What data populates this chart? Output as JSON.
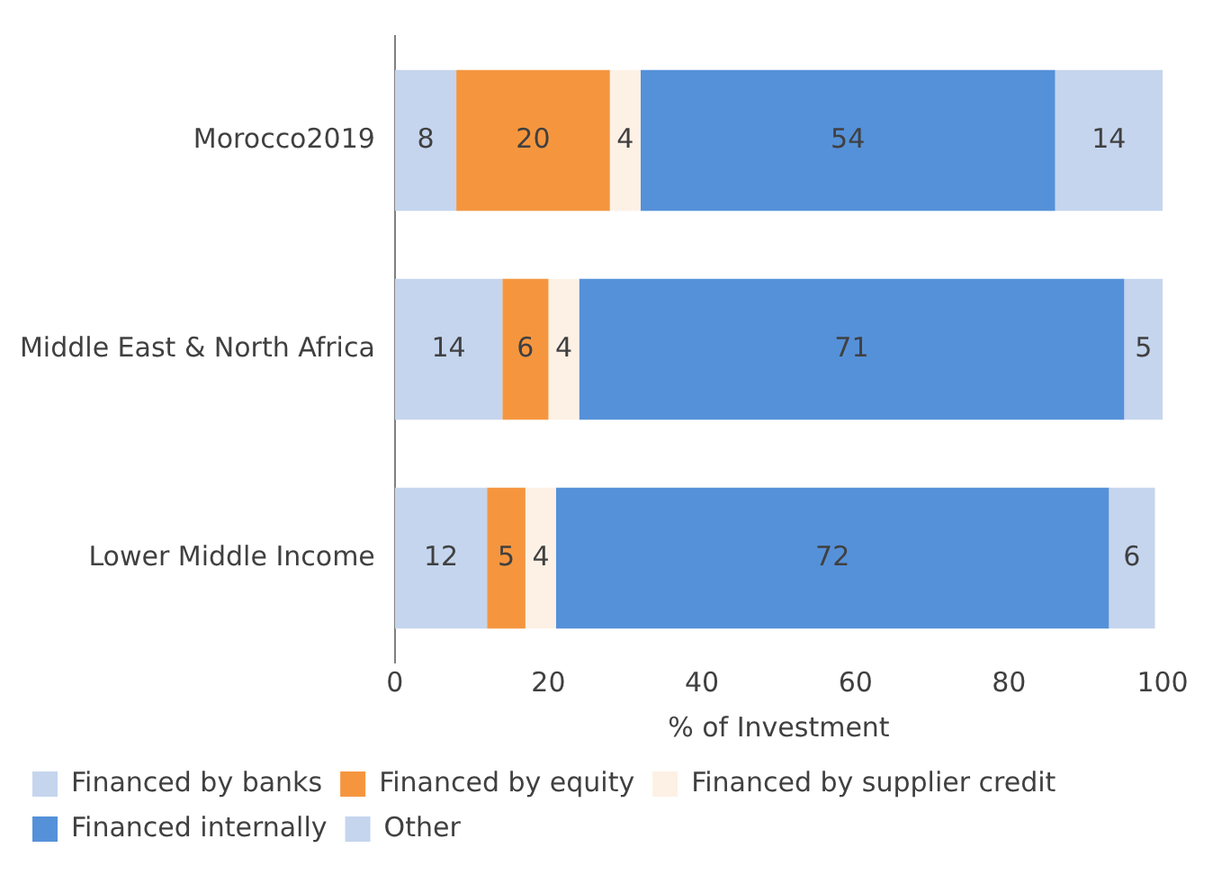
{
  "chart_data": {
    "type": "bar",
    "orientation": "horizontal",
    "stacked": true,
    "categories": [
      "Morocco2019",
      "Middle East & North Africa",
      "Lower Middle Income"
    ],
    "series": [
      {
        "name": "Financed by banks",
        "color": "#c5d5ee",
        "values": [
          8,
          14,
          12
        ]
      },
      {
        "name": "Financed by equity",
        "color": "#f5963f",
        "values": [
          20,
          6,
          5
        ]
      },
      {
        "name": "Financed by supplier credit",
        "color": "#fdf1e5",
        "values": [
          4,
          4,
          4
        ]
      },
      {
        "name": "Financed internally",
        "color": "#5591d9",
        "values": [
          54,
          71,
          72
        ]
      },
      {
        "name": "Other",
        "color": "#c5d5ee",
        "values": [
          14,
          5,
          6
        ]
      }
    ],
    "xlabel": "% of Investment",
    "xlim": [
      0,
      100
    ],
    "xticks": [
      0,
      20,
      40,
      60,
      80,
      100
    ],
    "grid": false,
    "legend": "bottom",
    "data_labels": true
  }
}
